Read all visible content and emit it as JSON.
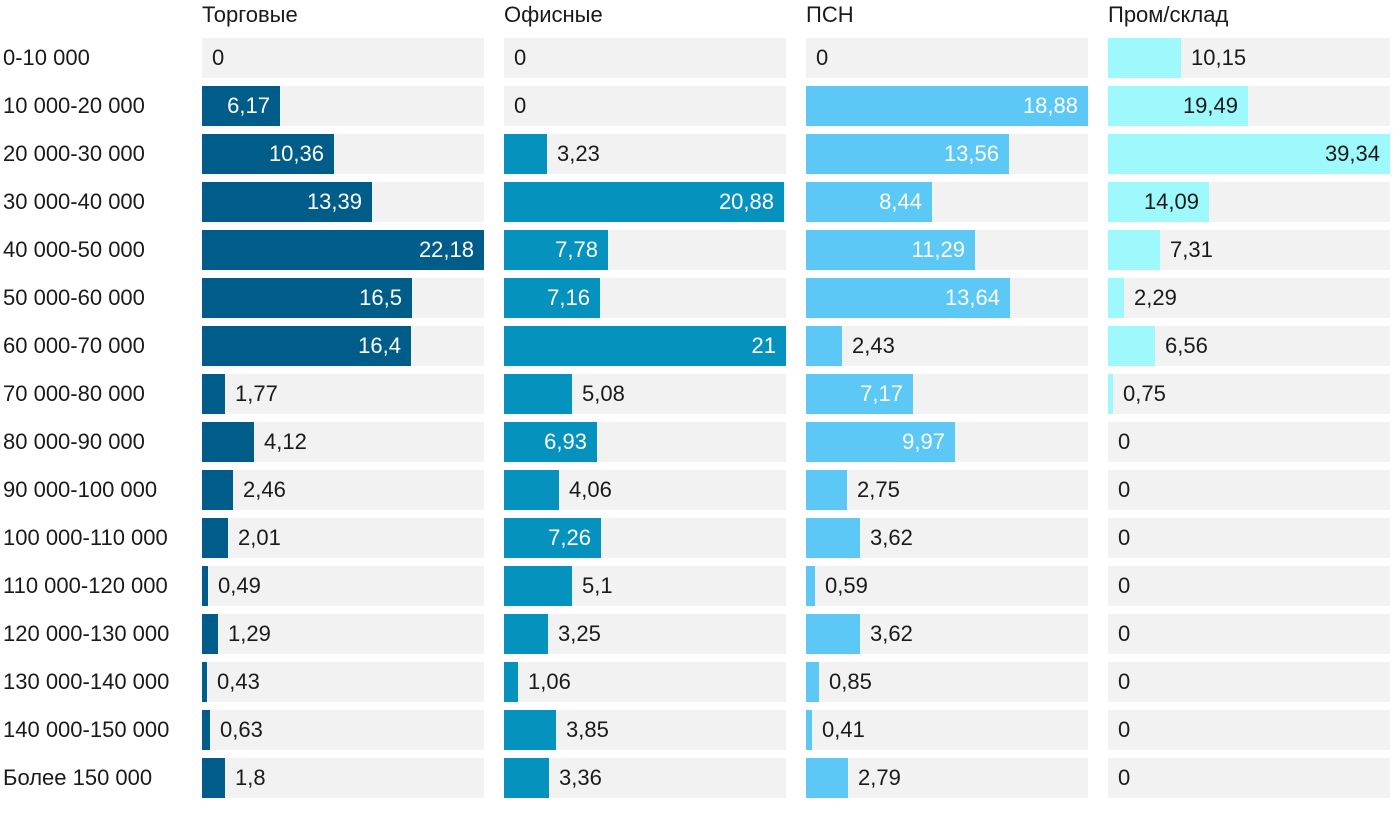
{
  "chart_data": {
    "type": "bar",
    "orientation": "horizontal",
    "categories": [
      "0-10 000",
      "10 000-20 000",
      "20 000-30 000",
      "30 000-40 000",
      "40 000-50 000",
      "50 000-60 000",
      "60 000-70 000",
      "70 000-80 000",
      "80 000-90 000",
      "90 000-100 000",
      "100 000-110 000",
      "110 000-120 000",
      "120 000-130 000",
      "130 000-140 000",
      "140 000-150 000",
      "Более 150 000"
    ],
    "series": [
      {
        "name": "Торговые",
        "color": "#005d8a",
        "values": [
          0,
          6.17,
          10.36,
          13.39,
          22.18,
          16.5,
          16.4,
          1.77,
          4.12,
          2.46,
          2.01,
          0.49,
          1.29,
          0.43,
          0.63,
          1.8
        ]
      },
      {
        "name": "Офисные",
        "color": "#0692bf",
        "values": [
          0,
          0,
          3.23,
          20.88,
          7.78,
          7.16,
          21,
          5.08,
          6.93,
          4.06,
          7.26,
          5.1,
          3.25,
          1.06,
          3.85,
          3.36
        ]
      },
      {
        "name": "ПСН",
        "color": "#5bc8f5",
        "values": [
          0,
          18.88,
          13.56,
          8.44,
          11.29,
          13.64,
          2.43,
          7.17,
          9.97,
          2.75,
          3.62,
          0.59,
          3.62,
          0.85,
          0.41,
          2.79
        ]
      },
      {
        "name": "Пром/склад",
        "color": "#9ef9fc",
        "values": [
          10.15,
          19.49,
          39.34,
          14.09,
          7.31,
          2.29,
          6.56,
          0.75,
          0,
          0,
          0,
          0,
          0,
          0,
          0,
          0
        ]
      }
    ],
    "title": "",
    "xlabel": "",
    "ylabel": ""
  }
}
